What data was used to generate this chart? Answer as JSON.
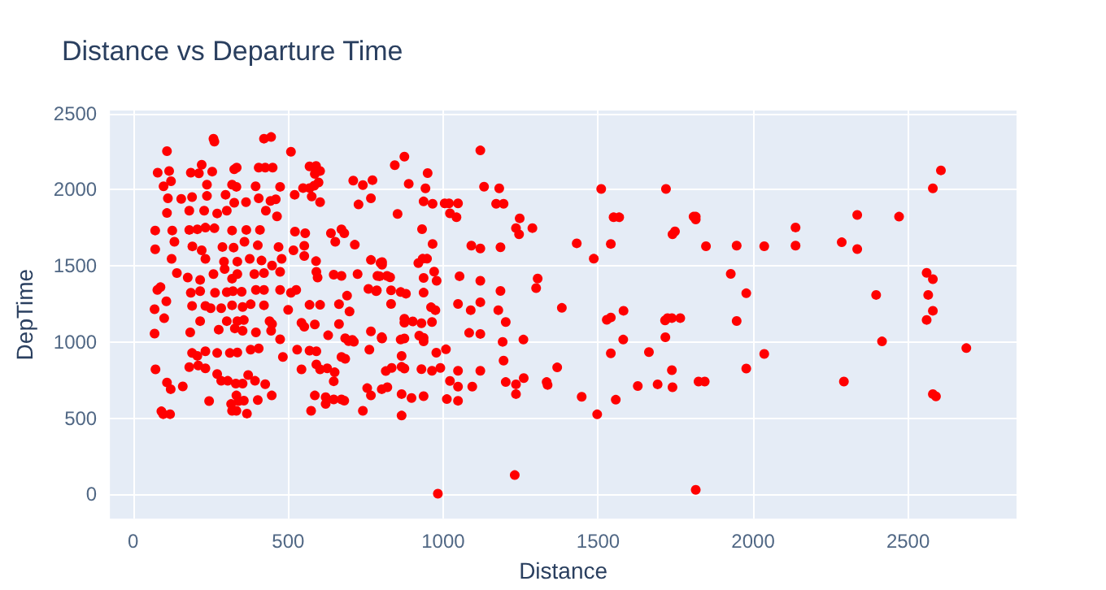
{
  "chart_data": {
    "type": "scatter",
    "title": "Distance vs Departure Time",
    "xlabel": "Distance",
    "ylabel": "DepTime",
    "color": "#ff0000",
    "marker": "circle",
    "grid": true,
    "xlim": [
      -75,
      2850
    ],
    "ylim": [
      -160,
      2520
    ],
    "xticks": [
      0,
      500,
      1000,
      1500,
      2000,
      2500
    ],
    "yticks": [
      0,
      500,
      1000,
      1500,
      2000,
      2500
    ],
    "x": [
      2606,
      2580,
      1815,
      1815,
      1848,
      1947,
      2036,
      2137,
      2137,
      2286,
      2336,
      2336,
      2471,
      1928,
      1978,
      2397,
      2560,
      2580,
      2565,
      2580,
      2560,
      1947,
      2416,
      2688,
      2036,
      1978,
      1824,
      1844,
      2293,
      2580,
      2590,
      1815,
      1120,
      875,
      844,
      950,
      889,
      943,
      1132,
      1510,
      1719,
      1181,
      1171,
      1195,
      937,
      966,
      1005,
      1019,
      1048,
      1022,
      1043,
      853,
      932,
      1247,
      1235,
      1245,
      1288,
      1091,
      1120,
      1185,
      966,
      1431,
      1541,
      1550,
      1568,
      1740,
      1748,
      1808,
      1486,
      803,
      803,
      920,
      934,
      948,
      829,
      795,
      971,
      979,
      937,
      1053,
      1120,
      1305,
      1300,
      1185,
      1120,
      1048,
      1089,
      1178,
      1383,
      1202,
      1541,
      1528,
      1582,
      1724,
      1738,
      1716,
      1765,
      786,
      832,
      863,
      880,
      832,
      937,
      961,
      975,
      875,
      875,
      902,
      930,
      964,
      803,
      863,
      875,
      923,
      937,
      937,
      1009,
      978,
      1084,
      1120,
      1192,
      1259,
      1195,
      1581,
      1541,
      1664,
      1717,
      866,
      866,
      875,
      834,
      930,
      964,
      991,
      1048,
      1120,
      1368,
      1738,
      820,
      866,
      898,
      937,
      1012,
      1022,
      1048,
      1048,
      1094,
      1202,
      1260,
      1235,
      1235,
      1334,
      1337,
      1447,
      1497,
      1557,
      1628,
      1692,
      1740,
      866,
      1231,
      983,
      259,
      262,
      422,
      445,
      109,
      509,
      79,
      116,
      186,
      212,
      221,
      255,
      326,
      334,
      405,
      426,
      450,
      569,
      590,
      603,
      586,
      710,
      741,
      772,
      98,
      122,
      238,
      319,
      333,
      395,
      474,
      548,
      584,
      598,
      112,
      155,
      190,
      238,
      298,
      326,
      364,
      405,
      443,
      460,
      521,
      569,
      576,
      603,
      727,
      767,
      109,
      181,
      229,
      271,
      302,
      428,
      464,
      71,
      126,
      181,
      207,
      233,
      262,
      319,
      365,
      409,
      522,
      555,
      638,
      672,
      681,
      71,
      133,
      191,
      221,
      288,
      324,
      359,
      402,
      469,
      517,
      552,
      652,
      715,
      124,
      233,
      293,
      336,
      376,
      414,
      448,
      479,
      552,
      590,
      767,
      798,
      141,
      176,
      216,
      259,
      295,
      319,
      336,
      391,
      422,
      474,
      591,
      595,
      647,
      672,
      724,
      788,
      819,
      78,
      88,
      107,
      69,
      186,
      216,
      264,
      302,
      322,
      350,
      396,
      422,
      474,
      509,
      526,
      569,
      603,
      690,
      759,
      784,
      190,
      233,
      250,
      284,
      319,
      353,
      379,
      422,
      500,
      664,
      698,
      100,
      69,
      184,
      216,
      302,
      336,
      357,
      276,
      328,
      353,
      396,
      445,
      474,
      440,
      448,
      543,
      552,
      586,
      629,
      664,
      684,
      707,
      767,
      802,
      72,
      109,
      121,
      160,
      91,
      97,
      119,
      190,
      207,
      233,
      271,
      312,
      336,
      379,
      405,
      181,
      210,
      233,
      271,
      284,
      305,
      331,
      353,
      371,
      393,
      426,
      447,
      245,
      333,
      340,
      357,
      402,
      319,
      333,
      367,
      316,
      483,
      529,
      543,
      569,
      591,
      591,
      603,
      626,
      647,
      650,
      672,
      684,
      695,
      712,
      762,
      574,
      586,
      621,
      621,
      647,
      672,
      681,
      741,
      755,
      767,
      802,
      815,
      802
    ],
    "values": [
      2127,
      2009,
      1823,
      1805,
      1629,
      1633,
      1629,
      1752,
      1633,
      1655,
      1834,
      1610,
      1823,
      1447,
      1320,
      1309,
      1454,
      1413,
      1309,
      1205,
      1145,
      1138,
      1004,
      960,
      922,
      826,
      740,
      740,
      740,
      658,
      643,
      29,
      2258,
      2217,
      2161,
      2109,
      2039,
      2009,
      2020,
      2005,
      2005,
      2009,
      1908,
      1908,
      1923,
      1908,
      1910,
      1910,
      1910,
      1845,
      1819,
      1841,
      1741,
      1812,
      1748,
      1707,
      1748,
      1633,
      1614,
      1622,
      1644,
      1648,
      1644,
      1819,
      1819,
      1707,
      1726,
      1823,
      1547,
      1525,
      1507,
      1518,
      1547,
      1547,
      1425,
      1432,
      1462,
      1402,
      1421,
      1432,
      1402,
      1417,
      1354,
      1335,
      1261,
      1250,
      1209,
      1209,
      1224,
      1131,
      1161,
      1146,
      1205,
      1157,
      1157,
      1142,
      1157,
      1339,
      1339,
      1328,
      1317,
      1250,
      1324,
      1228,
      1209,
      1153,
      1127,
      1135,
      1123,
      1131,
      1023,
      1016,
      1023,
      1042,
      1027,
      1004,
      952,
      930,
      1060,
      1053,
      1001,
      1016,
      878,
      1016,
      926,
      934,
      1031,
      908,
      837,
      826,
      830,
      822,
      811,
      830,
      811,
      811,
      833,
      815,
      703,
      658,
      632,
      644,
      625,
      744,
      707,
      614,
      707,
      737,
      763,
      722,
      658,
      737,
      718,
      640,
      525,
      621,
      711,
      722,
      703,
      517,
      126,
      4,
      2335,
      2316,
      2335,
      2346,
      2253,
      2249,
      2112,
      2123,
      2112,
      2108,
      2164,
      2119,
      2134,
      2145,
      2145,
      2145,
      2145,
      2153,
      2156,
      2123,
      2104,
      2060,
      2030,
      2063,
      2022,
      2056,
      2033,
      2033,
      2019,
      2022,
      2019,
      2011,
      2026,
      2048,
      1944,
      1940,
      1952,
      1959,
      1967,
      1914,
      1918,
      1944,
      1926,
      1937,
      1967,
      2011,
      1955,
      1918,
      1903,
      1944,
      1847,
      1862,
      1862,
      1844,
      1862,
      1862,
      1825,
      1732,
      1732,
      1736,
      1740,
      1751,
      1747,
      1732,
      1736,
      1736,
      1725,
      1714,
      1714,
      1740,
      1714,
      1609,
      1658,
      1628,
      1602,
      1624,
      1620,
      1658,
      1635,
      1624,
      1602,
      1632,
      1658,
      1639,
      1546,
      1546,
      1528,
      1528,
      1546,
      1535,
      1502,
      1546,
      1565,
      1531,
      1539,
      1520,
      1453,
      1423,
      1408,
      1446,
      1479,
      1416,
      1446,
      1446,
      1453,
      1461,
      1461,
      1423,
      1442,
      1434,
      1446,
      1434,
      1434,
      1342,
      1360,
      1267,
      1215,
      1323,
      1334,
      1323,
      1327,
      1334,
      1330,
      1342,
      1342,
      1342,
      1323,
      1342,
      1244,
      1244,
      1304,
      1349,
      1334,
      1237,
      1237,
      1222,
      1222,
      1241,
      1230,
      1248,
      1241,
      1211,
      1248,
      1200,
      1156,
      1055,
      1063,
      1137,
      1137,
      1137,
      1144,
      1081,
      1089,
      1074,
      1063,
      1074,
      1018,
      1137,
      1118,
      1126,
      1100,
      1115,
      1044,
      1118,
      1025,
      1014,
      1070,
      1025,
      820,
      734,
      690,
      708,
      545,
      526,
      526,
      928,
      909,
      939,
      928,
      928,
      931,
      950,
      958,
      835,
      846,
      827,
      790,
      745,
      745,
      727,
      727,
      783,
      745,
      723,
      649,
      612,
      649,
      612,
      615,
      619,
      548,
      548,
      530,
      593,
      902,
      950,
      820,
      943,
      853,
      939,
      820,
      827,
      742,
      801,
      902,
      890,
      1006,
      1002,
      950,
      548,
      649,
      593,
      638,
      623,
      623,
      615,
      548,
      697,
      649,
      690,
      809,
      1032
    ]
  }
}
